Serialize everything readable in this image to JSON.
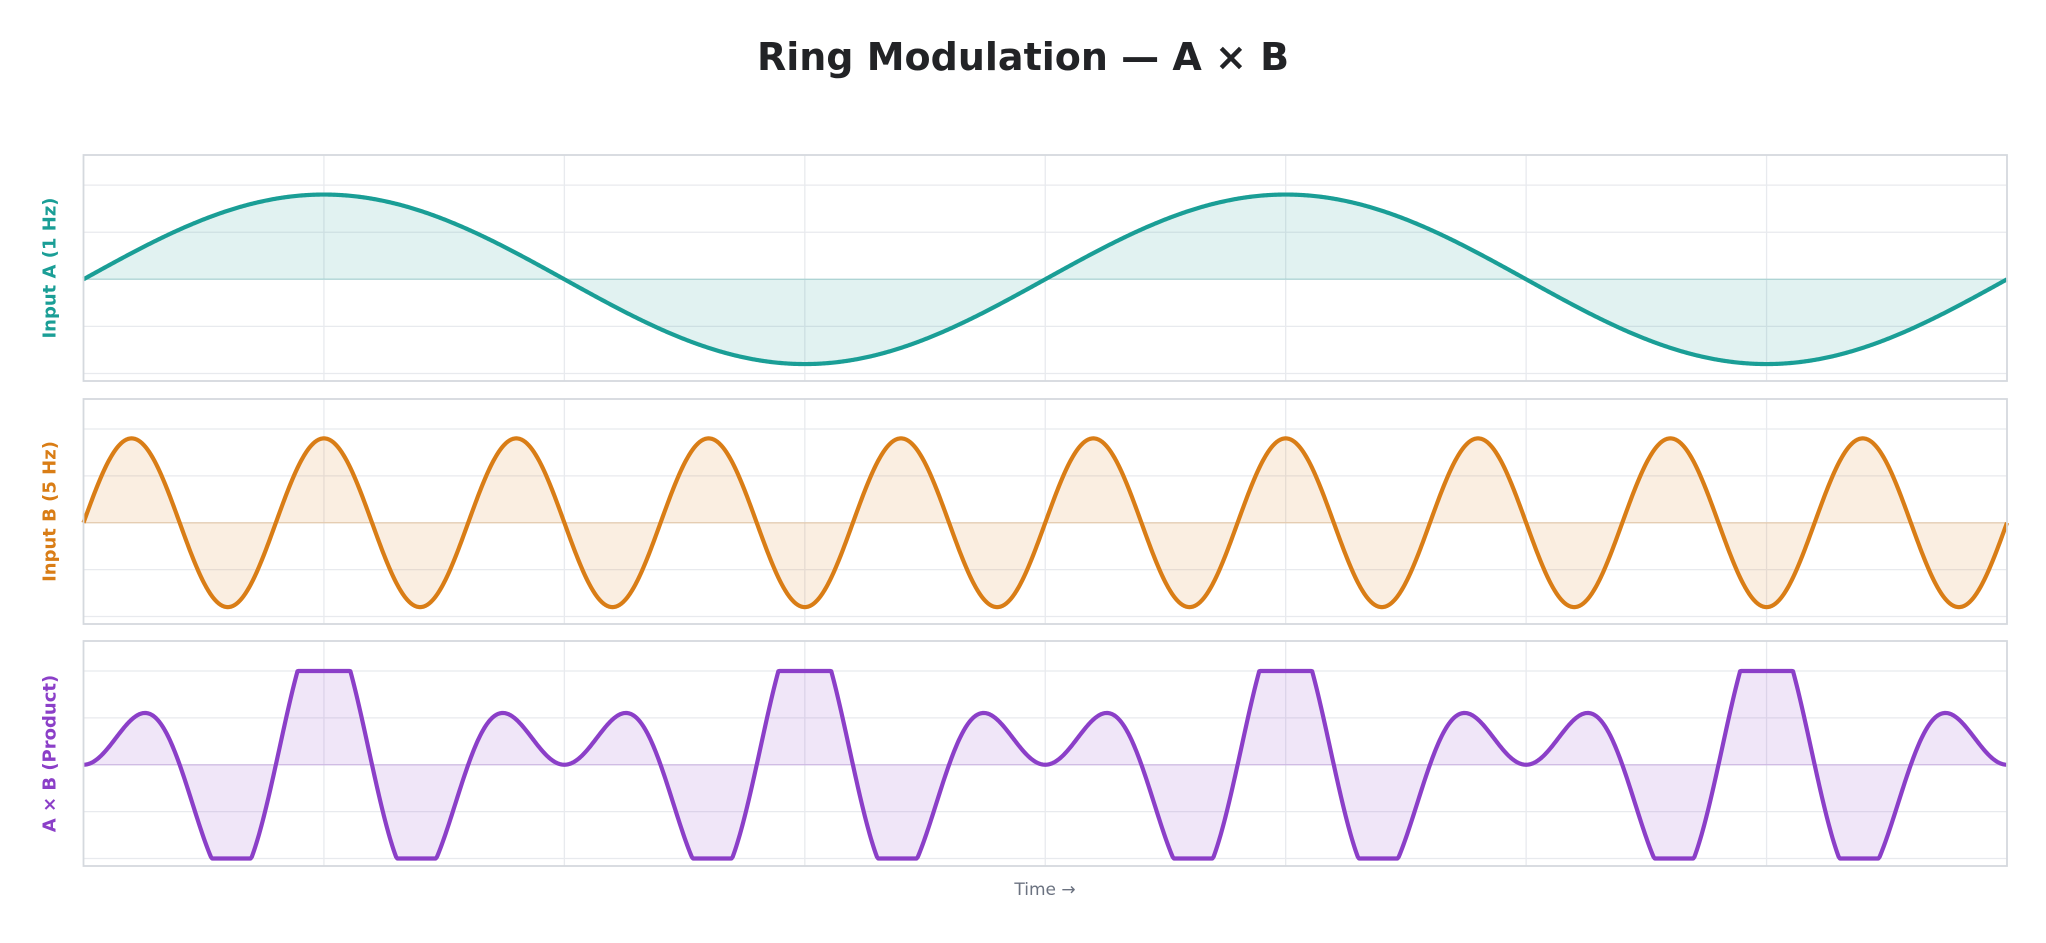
{
  "chart_data": {
    "type": "line",
    "title": "Ring Modulation — A × B",
    "xlabel": "Time →",
    "xlim": [
      0,
      2
    ],
    "grid": true,
    "legend": "none",
    "tick_labels_visible": false,
    "panels": [
      {
        "ylabel": "Input A (1 Hz)",
        "color": "#1a9e96",
        "signal": "sine",
        "frequency_hz": 1,
        "amplitude": 0.9,
        "ylim": [
          -1.08,
          1.32
        ],
        "fill_to_zero": true
      },
      {
        "ylabel": "Input B (5 Hz)",
        "color": "#d97d16",
        "signal": "sine",
        "frequency_hz": 5,
        "amplitude": 0.9,
        "ylim": [
          -1.08,
          1.32
        ],
        "fill_to_zero": true
      },
      {
        "ylabel": "A × B (Product)",
        "color": "#8b3fc8",
        "signal": "product",
        "gain": 1.56,
        "clip": [
          -1,
          1
        ],
        "ylim": [
          -1.08,
          1.32
        ],
        "fill_to_zero": true
      }
    ]
  }
}
